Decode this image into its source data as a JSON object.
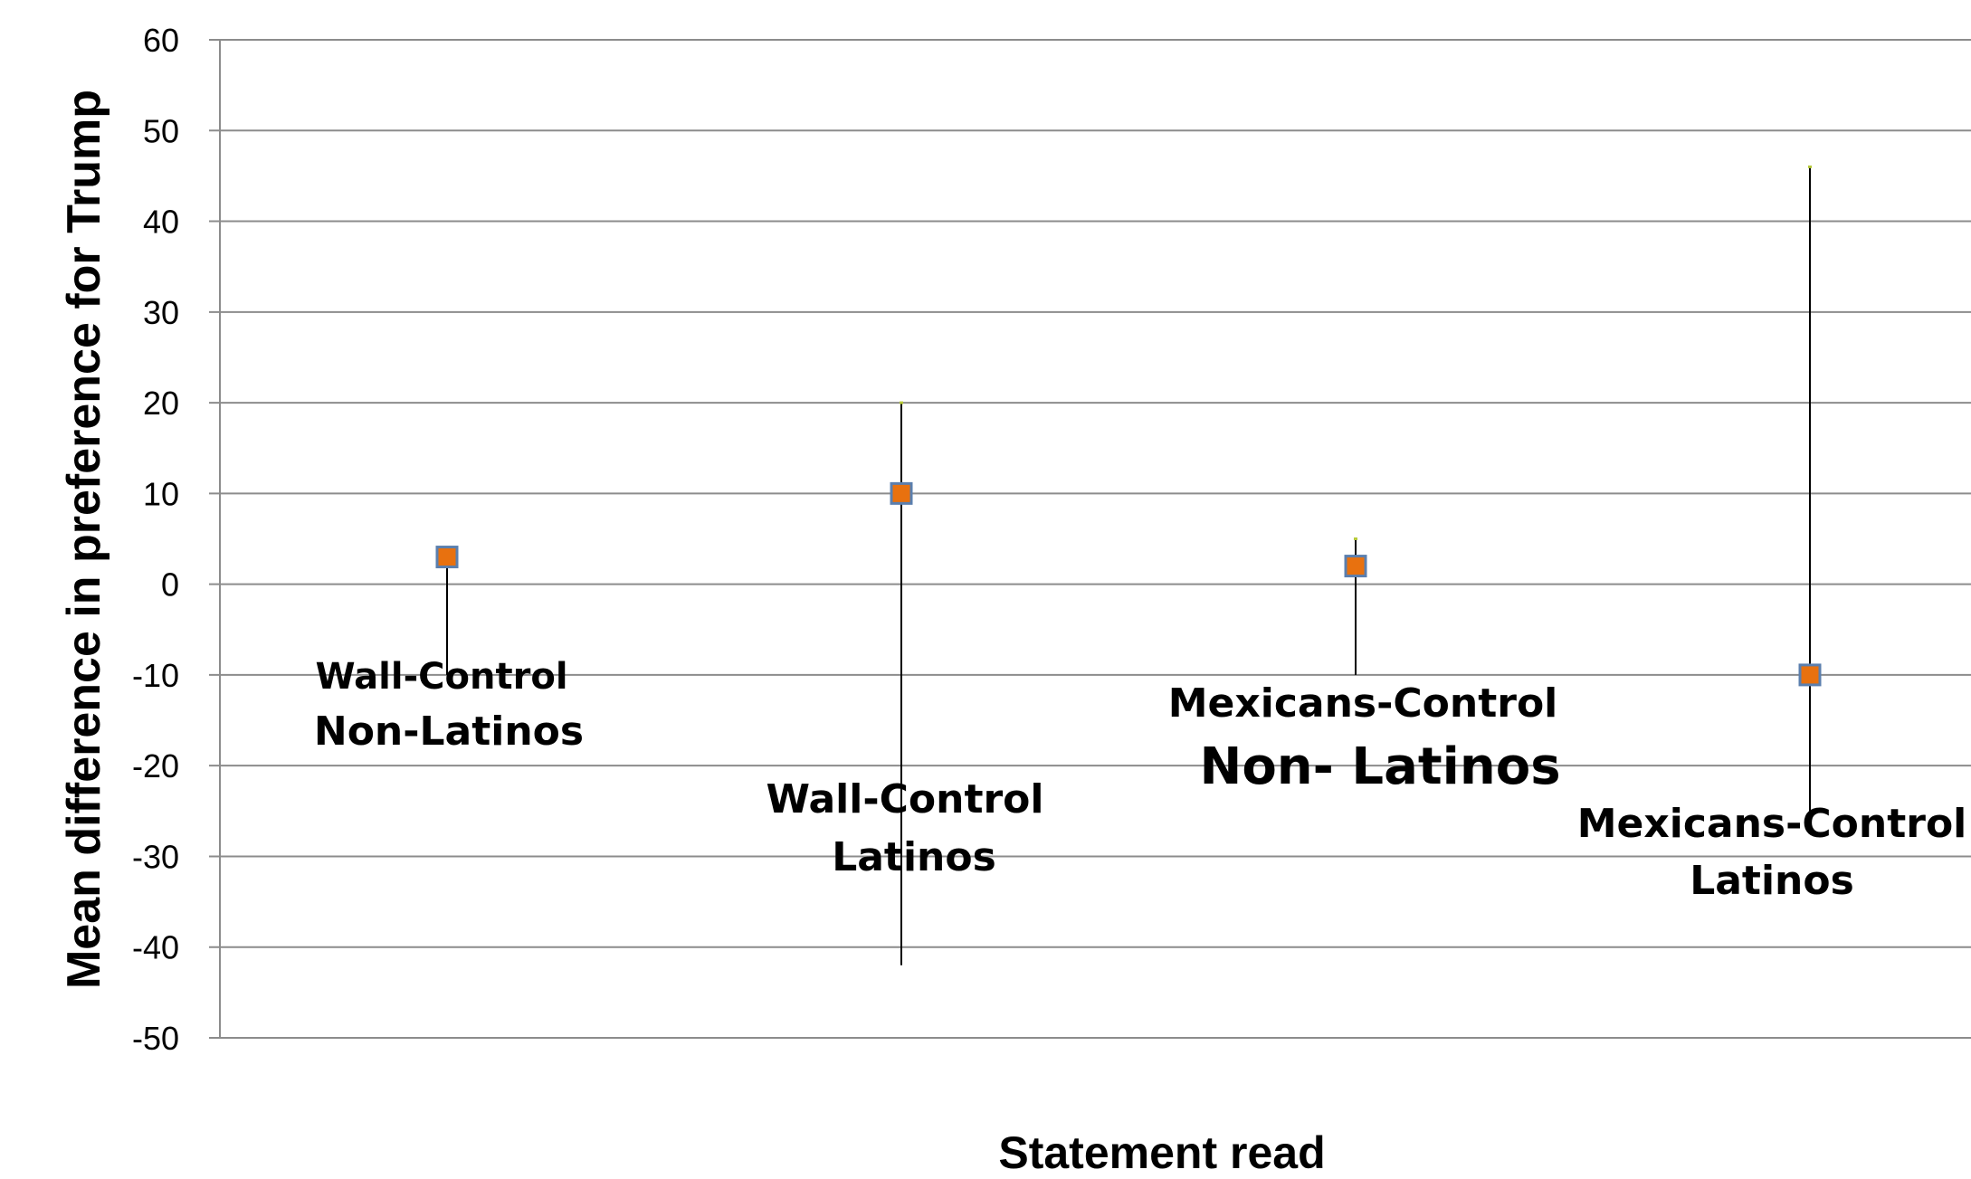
{
  "chart_data": {
    "type": "scatter",
    "ylabel": "Mean difference in preference for Trump",
    "xlabel": "Statement read",
    "ylim": [
      -50,
      60
    ],
    "yticks": [
      60,
      50,
      40,
      30,
      20,
      10,
      0,
      -10,
      -20,
      -30,
      -40,
      -50
    ],
    "grid": true,
    "points": [
      {
        "label_line1": "Wall-Control",
        "label_line2": "Non-Latinos",
        "mean": 3,
        "upper": 3,
        "lower": -10
      },
      {
        "label_line1": "Wall-Control",
        "label_line2": "Latinos",
        "mean": 10,
        "upper": 20,
        "lower": -42
      },
      {
        "label_line1": "Mexicans-Control",
        "label_line2": "Non- Latinos",
        "mean": 2,
        "upper": 5,
        "lower": -10
      },
      {
        "label_line1": "Mexicans-Control",
        "label_line2": "Latinos",
        "mean": -10,
        "upper": 46,
        "lower": -25
      }
    ],
    "colors": {
      "marker_fill": "#e8710f",
      "marker_stroke": "#5b7fae",
      "grid": "#8c8c8c",
      "whisker": "#000000"
    }
  }
}
